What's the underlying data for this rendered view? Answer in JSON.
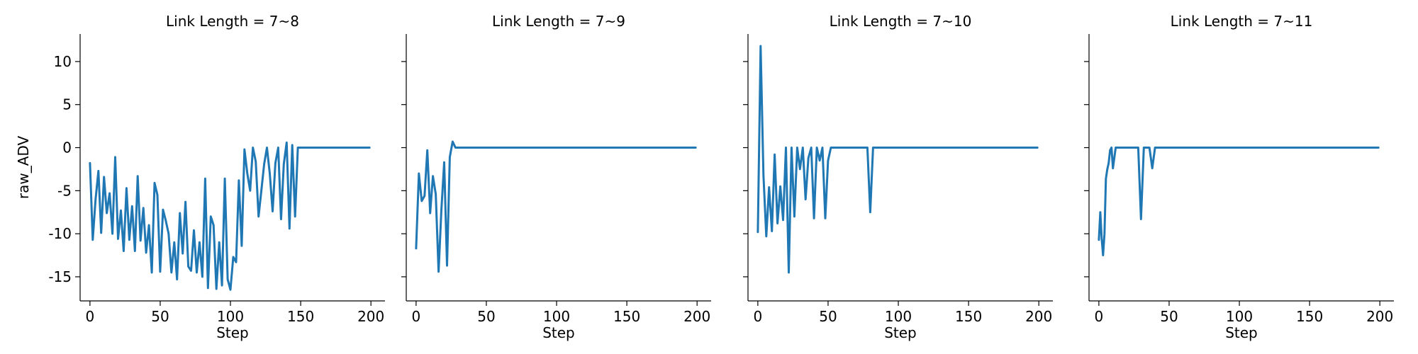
{
  "chart_data": [
    {
      "type": "line",
      "title": "Link Length = 7~8",
      "xlabel": "Step",
      "ylabel": "raw_ADV",
      "xlim": [
        -7,
        210
      ],
      "ylim": [
        -17.8,
        13.2
      ],
      "xticks": [
        0,
        50,
        100,
        150,
        200
      ],
      "yticks": [
        10,
        5,
        0,
        -5,
        -10,
        -15
      ],
      "grid": false,
      "color": "#1f77b4",
      "series": [
        {
          "x": [
            0,
            2,
            4,
            6,
            8,
            10,
            12,
            14,
            16,
            18,
            20,
            22,
            24,
            26,
            28,
            30,
            32,
            34,
            36,
            38,
            40,
            42,
            44,
            46,
            48,
            50,
            52,
            54,
            56,
            58,
            60,
            62,
            64,
            66,
            68,
            70,
            72,
            74,
            76,
            78,
            80,
            82,
            84,
            86,
            88,
            90,
            92,
            94,
            96,
            98,
            100,
            102,
            104,
            106,
            108,
            110,
            112,
            114,
            116,
            118,
            120,
            122,
            124,
            126,
            128,
            130,
            132,
            134,
            136,
            138,
            140,
            142,
            144,
            146,
            148,
            150,
            160,
            170,
            180,
            190,
            199
          ],
          "values": [
            -1.8,
            -10.7,
            -6,
            -2.7,
            -9.9,
            -3.4,
            -7.6,
            -5.3,
            -10,
            -1.1,
            -10.6,
            -7.3,
            -12,
            -4.7,
            -10.7,
            -6.8,
            -12,
            -3.3,
            -10.8,
            -7,
            -12.2,
            -9,
            -14.5,
            -4.1,
            -5.5,
            -14.4,
            -7.2,
            -8.5,
            -10,
            -14.5,
            -11,
            -15.3,
            -7.6,
            -12.3,
            -6.3,
            -13.8,
            -14.3,
            -9.6,
            -14.5,
            -11,
            -15,
            -3.6,
            -16.3,
            -8,
            -9,
            -16.4,
            -11,
            -16,
            -3.6,
            -15.3,
            -16.5,
            -12.7,
            -13.3,
            -3.8,
            -11.4,
            -0.2,
            -3,
            -5,
            0,
            -1.6,
            -8,
            -5,
            -1.9,
            0,
            -3,
            -7.4,
            -1.8,
            0,
            -8.3,
            -1.9,
            0.6,
            -9.4,
            0.3,
            -8,
            0,
            0,
            0,
            0,
            0,
            0,
            0
          ]
        }
      ]
    },
    {
      "type": "line",
      "title": "Link Length = 7~9",
      "xlabel": "Step",
      "ylabel": "",
      "xlim": [
        -7,
        210
      ],
      "ylim": [
        -17.8,
        13.2
      ],
      "xticks": [
        0,
        50,
        100,
        150,
        200
      ],
      "yticks": [
        10,
        5,
        0,
        -5,
        -10,
        -15
      ],
      "grid": false,
      "color": "#1f77b4",
      "series": [
        {
          "x": [
            0,
            2,
            4,
            6,
            8,
            10,
            12,
            14,
            16,
            18,
            20,
            22,
            24,
            26,
            28,
            30,
            40,
            60,
            80,
            100,
            120,
            140,
            160,
            180,
            199
          ],
          "values": [
            -11.7,
            -3,
            -6.2,
            -5.6,
            -0.3,
            -7.6,
            -3.3,
            -5.4,
            -14.4,
            -7.3,
            -1.7,
            -13.7,
            -1.1,
            0.7,
            0,
            0,
            0,
            0,
            0,
            0,
            0,
            0,
            0,
            0,
            0
          ]
        }
      ]
    },
    {
      "type": "line",
      "title": "Link Length = 7~10",
      "xlabel": "Step",
      "ylabel": "",
      "xlim": [
        -7,
        210
      ],
      "ylim": [
        -17.8,
        13.2
      ],
      "xticks": [
        0,
        50,
        100,
        150,
        200
      ],
      "yticks": [
        10,
        5,
        0,
        -5,
        -10,
        -15
      ],
      "grid": false,
      "color": "#1f77b4",
      "series": [
        {
          "x": [
            0,
            2,
            4,
            6,
            8,
            10,
            12,
            14,
            16,
            18,
            20,
            22,
            24,
            26,
            28,
            30,
            32,
            34,
            36,
            38,
            40,
            42,
            44,
            46,
            48,
            50,
            52,
            54,
            56,
            60,
            70,
            78,
            80,
            82,
            90,
            100,
            120,
            140,
            160,
            180,
            199
          ],
          "values": [
            -9.8,
            11.8,
            -3.2,
            -10.3,
            -4.6,
            -9.7,
            -0.8,
            -8.8,
            -4.5,
            -8.4,
            0,
            -14.5,
            0,
            -8,
            0,
            -2.5,
            0,
            -6,
            -1.2,
            0,
            -8.2,
            0,
            -1.5,
            0,
            -8.2,
            -1.5,
            0,
            0,
            0,
            0,
            0,
            0,
            -7.5,
            0,
            0,
            0,
            0,
            0,
            0,
            0,
            0
          ]
        }
      ]
    },
    {
      "type": "line",
      "title": "Link Length = 7~11",
      "xlabel": "Step",
      "ylabel": "",
      "xlim": [
        -7,
        210
      ],
      "ylim": [
        -17.8,
        13.2
      ],
      "xticks": [
        0,
        50,
        100,
        150,
        200
      ],
      "yticks": [
        10,
        5,
        0,
        -5,
        -10,
        -15
      ],
      "grid": false,
      "color": "#1f77b4",
      "series": [
        {
          "x": [
            0,
            1,
            2,
            3,
            4,
            5,
            6,
            7,
            8,
            9,
            10,
            12,
            14,
            16,
            20,
            25,
            28,
            30,
            32,
            35,
            36,
            38,
            40,
            50,
            70,
            100,
            130,
            160,
            199
          ],
          "values": [
            -10.7,
            -7.5,
            -10.5,
            -12.5,
            -10,
            -3.6,
            -2.5,
            -1.8,
            -0.3,
            0,
            -2.4,
            0,
            0,
            0,
            0,
            0,
            0,
            -8.3,
            0,
            0,
            0,
            -2.4,
            0,
            0,
            0,
            0,
            0,
            0,
            0
          ]
        }
      ]
    }
  ]
}
